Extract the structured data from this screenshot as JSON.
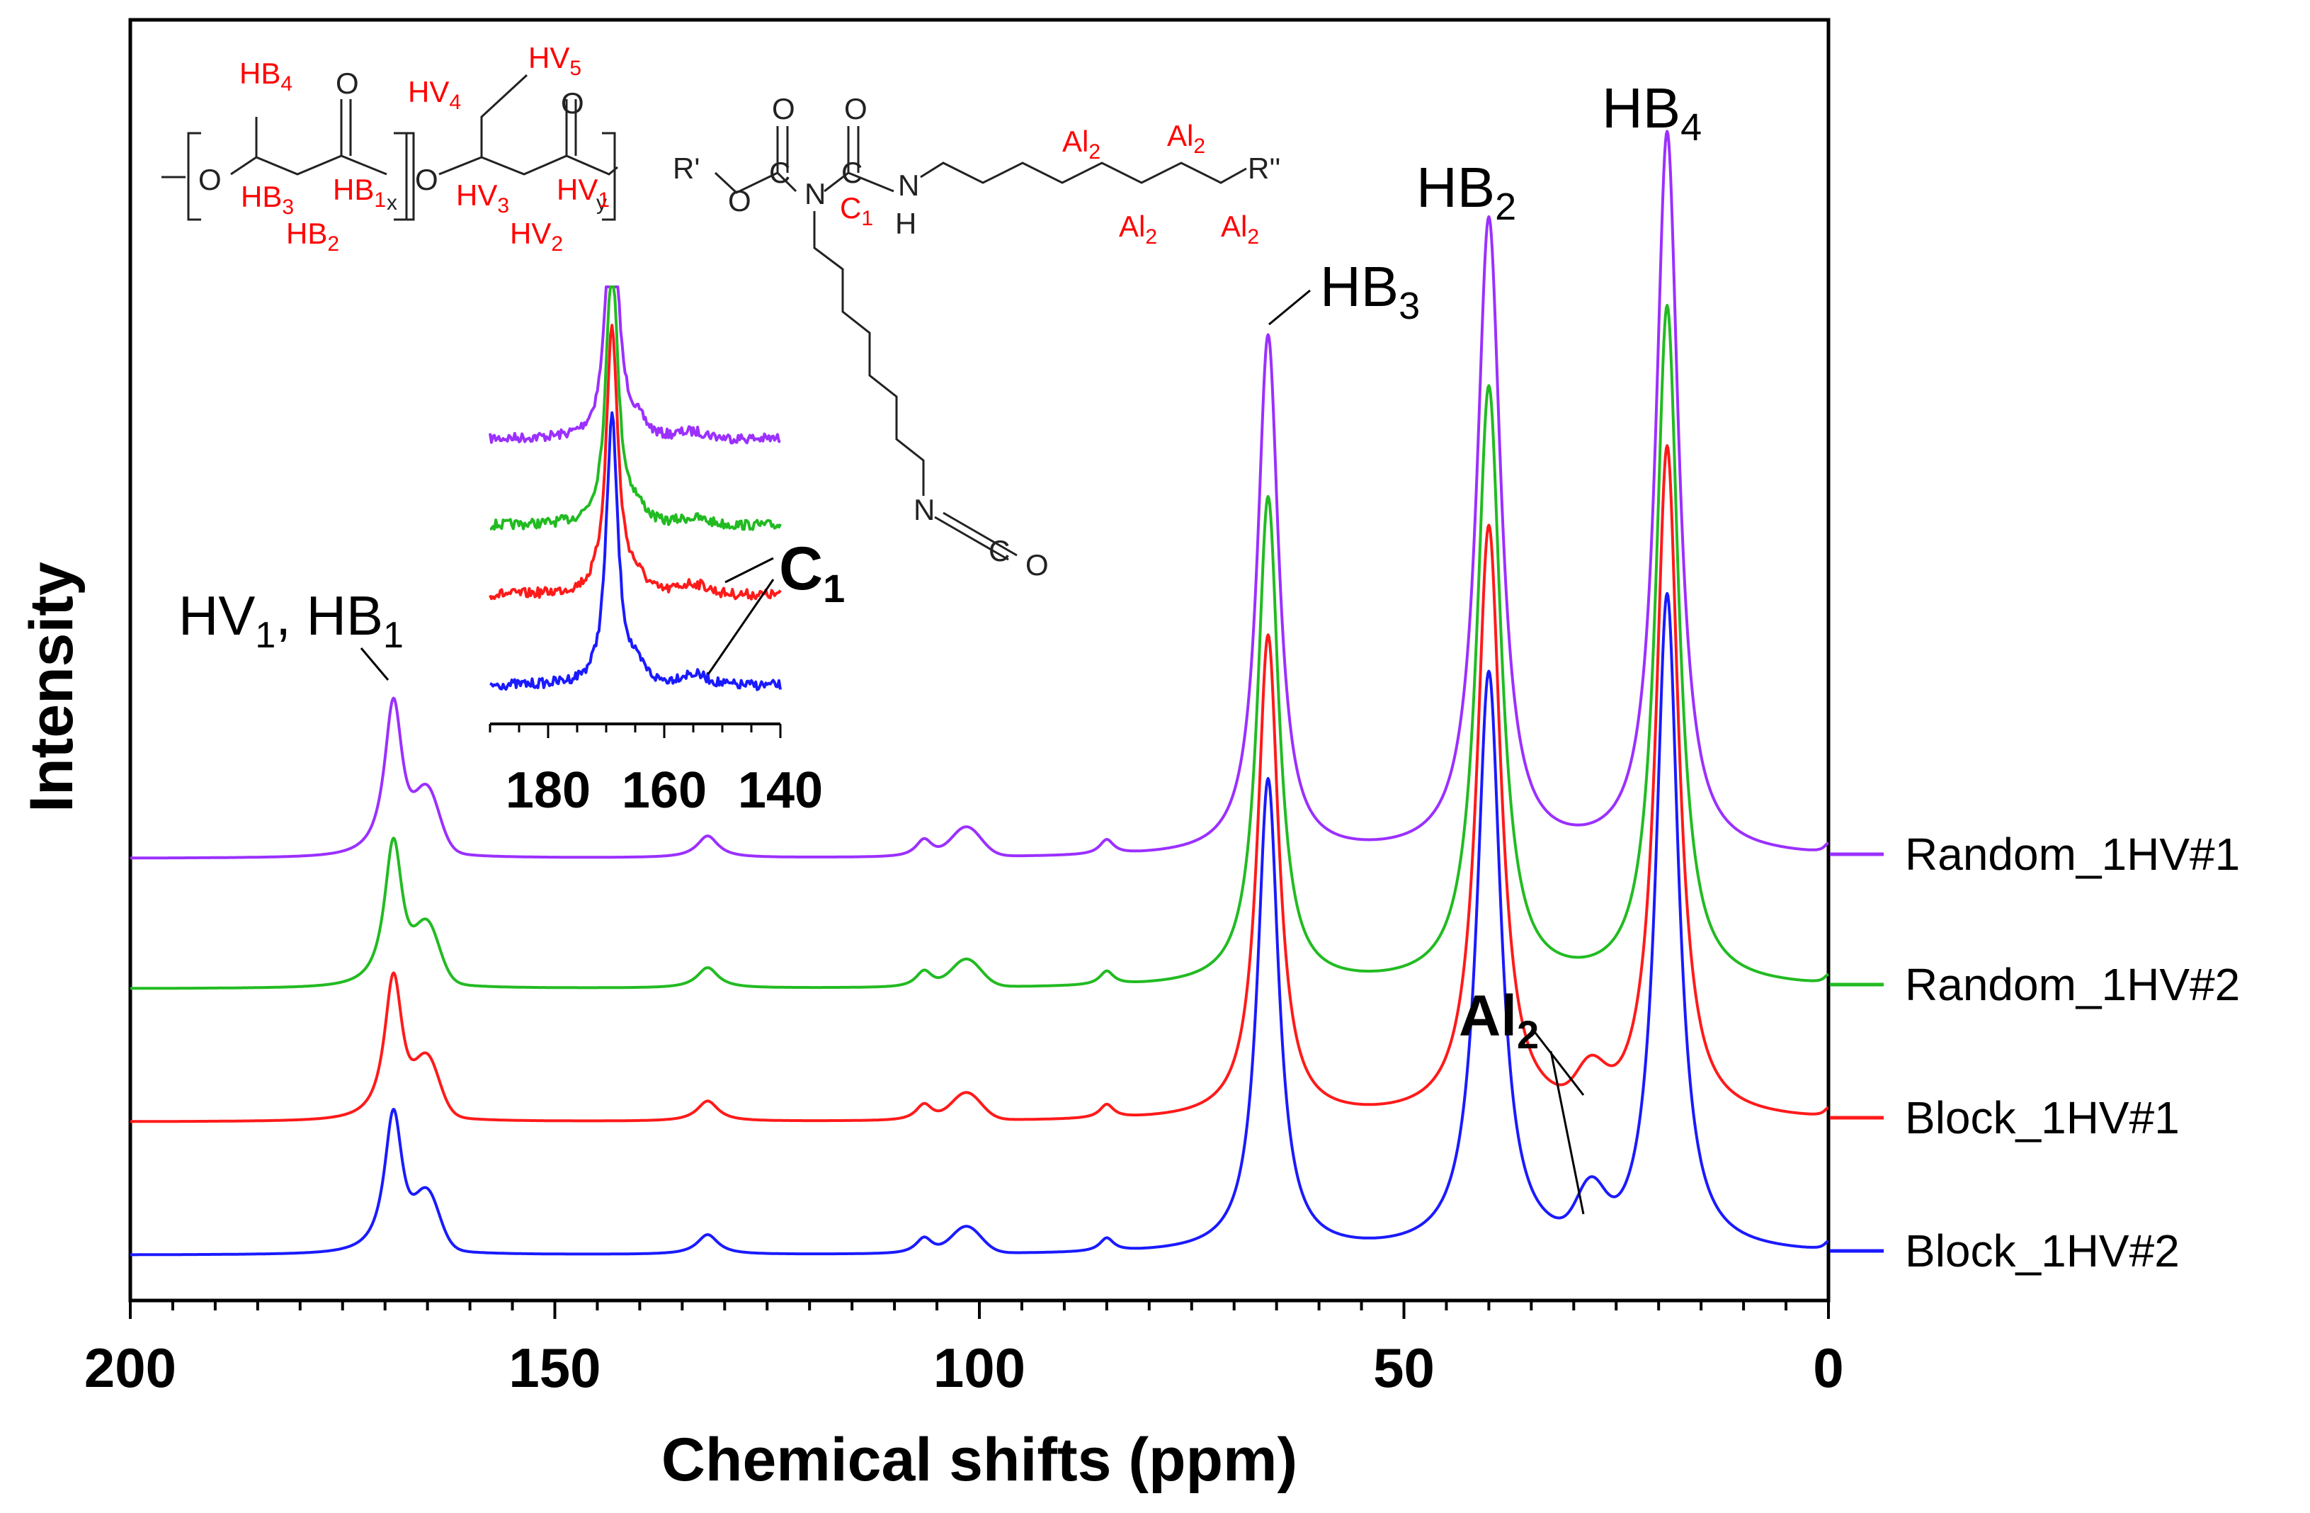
{
  "chart_data": {
    "type": "line",
    "title": "",
    "xlabel": "Chemical shifts (ppm)",
    "ylabel": "Intensity",
    "xlim": [
      200,
      0
    ],
    "x_reversed": true,
    "x_ticks": [
      "200",
      "150",
      "100",
      "50",
      "0"
    ],
    "x_tick_values": [
      200,
      150,
      100,
      50,
      0
    ],
    "legend": {
      "placement": "right"
    },
    "series": [
      {
        "name": "Random_1HV#1",
        "color": "#9B30FF",
        "offset": 3,
        "scale": 1.0,
        "al2": 0.0
      },
      {
        "name": "Random_1HV#2",
        "color": "#22BB22",
        "offset": 2,
        "scale": 0.94,
        "al2": 0.0
      },
      {
        "name": "Block_1HV#1",
        "color": "#FF1A1A",
        "offset": 1,
        "scale": 0.93,
        "al2": 0.05
      },
      {
        "name": "Block_1HV#2",
        "color": "#1A1AFF",
        "offset": 0,
        "scale": 0.91,
        "al2": 0.07
      }
    ],
    "peaks": [
      {
        "label": "HB4",
        "x": 19.0,
        "height": 1.0
      },
      {
        "label": "HB2",
        "x": 40.0,
        "height": 0.88
      },
      {
        "label": "HB3",
        "x": 66.0,
        "height": 0.74
      },
      {
        "label": "HV1, HB1",
        "x": 169.0,
        "height": 0.23
      }
    ],
    "annotations": {
      "hb4_main": "HB",
      "hb4_sub": "4",
      "hb2_main": "HB",
      "hb2_sub": "2",
      "hb3_main": "HB",
      "hb3_sub": "3",
      "hv1_a": "HV",
      "hv1_a_sub": "1",
      "hv1_sep": ", ",
      "hv1_b": "HB",
      "hv1_b_sub": "1",
      "al2_main": "Al",
      "al2_sub": "2",
      "c1_main": "C",
      "c1_sub": "1"
    },
    "inset": {
      "xlim": [
        190,
        140
      ],
      "x_ticks": [
        "180",
        "160",
        "140"
      ],
      "x_tick_values": [
        180,
        160,
        140
      ],
      "c1_shift": 155
    },
    "structures": {
      "phbv": {
        "hb4": [
          "HB",
          "4"
        ],
        "hb3": [
          "HB",
          "3"
        ],
        "hb2": [
          "HB",
          "2"
        ],
        "hb1": [
          "HB",
          "1"
        ],
        "hv5": [
          "HV",
          "5"
        ],
        "hv4": [
          "HV",
          "4"
        ],
        "hv3": [
          "HV",
          "3"
        ],
        "hv2": [
          "HV",
          "2"
        ],
        "hv1": [
          "HV",
          "1"
        ],
        "o_atom": "O",
        "x_sub": "x",
        "y_sub": "y"
      },
      "crosslinker": {
        "r1": "R'",
        "r2": "R''",
        "o": "O",
        "n": "N",
        "h": "H",
        "c": "C",
        "c1": [
          "C",
          "1"
        ],
        "al2": [
          "Al",
          "2"
        ]
      }
    }
  }
}
